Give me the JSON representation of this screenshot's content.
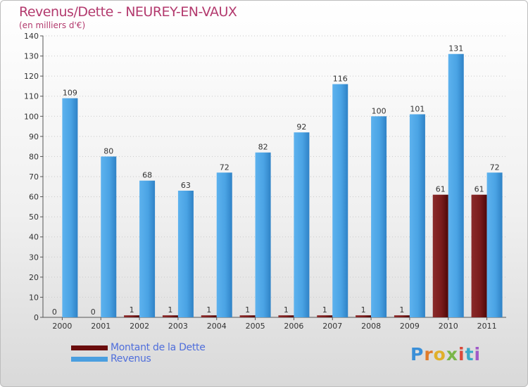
{
  "title": "Revenus/Dette - NEUREY-EN-VAUX",
  "subtitle": "(en milliers d'€)",
  "logo": "Proxiti",
  "colors": {
    "dette": "#7a1a1a",
    "revenus": "#4a9fe0",
    "title": "#b33a6e",
    "legend_text": "#4f6edb"
  },
  "legend": [
    {
      "label": "Montant de la Dette",
      "color": "#6a0d0d"
    },
    {
      "label": "Revenus",
      "color": "#4a9fe0"
    }
  ],
  "chart_data": {
    "type": "bar",
    "categories": [
      "2000",
      "2001",
      "2002",
      "2003",
      "2004",
      "2005",
      "2006",
      "2007",
      "2008",
      "2009",
      "2010",
      "2011"
    ],
    "series": [
      {
        "name": "Montant de la Dette",
        "values": [
          0,
          0,
          1,
          1,
          1,
          1,
          1,
          1,
          1,
          1,
          61,
          61
        ]
      },
      {
        "name": "Revenus",
        "values": [
          109,
          80,
          68,
          63,
          72,
          82,
          92,
          116,
          100,
          101,
          131,
          72
        ]
      }
    ],
    "ylim": [
      0,
      140
    ],
    "yticks": [
      0,
      10,
      20,
      30,
      40,
      50,
      60,
      70,
      80,
      90,
      100,
      110,
      120,
      130,
      140
    ],
    "grid": true,
    "legend_position": "bottom-left"
  }
}
